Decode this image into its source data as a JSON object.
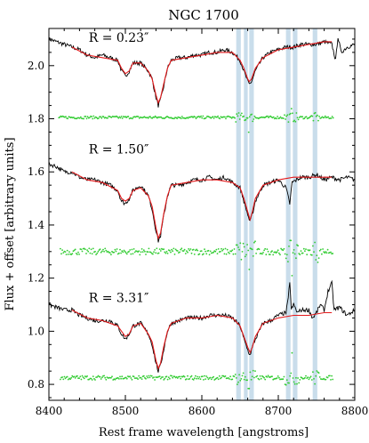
{
  "chart_data": {
    "type": "line",
    "title": "NGC 1700",
    "xlabel": "Rest frame wavelength [angstroms]",
    "ylabel": "Flux + offset [arbitrary units]",
    "xlim": [
      8400,
      8800
    ],
    "ylim": [
      0.74,
      2.14
    ],
    "xticks": [
      8400,
      8500,
      8600,
      8700,
      8800
    ],
    "yticks": [
      0.8,
      1.0,
      1.2,
      1.4,
      1.6,
      1.8,
      2.0
    ],
    "x_tick_labels": [
      "8400",
      "8500",
      "8600",
      "8700",
      "8800"
    ],
    "y_tick_labels": [
      "0.8",
      "1.0",
      "1.2",
      "1.4",
      "1.6",
      "1.8",
      "2.0"
    ],
    "masked_bands": [
      [
        8645,
        8651
      ],
      [
        8655,
        8660
      ],
      [
        8662,
        8668
      ],
      [
        8710,
        8716
      ],
      [
        8719,
        8725
      ],
      [
        8745,
        8751
      ]
    ],
    "colors": {
      "observed": "#000000",
      "model": "#e41a1c",
      "residuals": "#33cc33",
      "masked_band": "#bcd4e6"
    },
    "panels": [
      {
        "label": "R = 0.23″",
        "label_x": 8452,
        "label_y": 2.09,
        "observed": [
          [
            8400,
            2.1
          ],
          [
            8410,
            2.09
          ],
          [
            8420,
            2.08
          ],
          [
            8430,
            2.07
          ],
          [
            8440,
            2.06
          ],
          [
            8450,
            2.04
          ],
          [
            8460,
            2.03
          ],
          [
            8470,
            2.04
          ],
          [
            8480,
            2.03
          ],
          [
            8490,
            2.02
          ],
          [
            8495,
            1.98
          ],
          [
            8500,
            1.96
          ],
          [
            8505,
            1.98
          ],
          [
            8510,
            2.01
          ],
          [
            8520,
            2.01
          ],
          [
            8530,
            1.98
          ],
          [
            8535,
            1.95
          ],
          [
            8540,
            1.88
          ],
          [
            8543,
            1.85
          ],
          [
            8546,
            1.87
          ],
          [
            8550,
            1.92
          ],
          [
            8555,
            1.99
          ],
          [
            8560,
            2.02
          ],
          [
            8570,
            2.03
          ],
          [
            8580,
            2.03
          ],
          [
            8590,
            2.04
          ],
          [
            8600,
            2.04
          ],
          [
            8610,
            2.05
          ],
          [
            8620,
            2.05
          ],
          [
            8630,
            2.06
          ],
          [
            8640,
            2.05
          ],
          [
            8650,
            2.02
          ],
          [
            8655,
            1.98
          ],
          [
            8660,
            1.94
          ],
          [
            8662,
            1.93
          ],
          [
            8665,
            1.94
          ],
          [
            8670,
            1.98
          ],
          [
            8680,
            2.03
          ],
          [
            8690,
            2.05
          ],
          [
            8700,
            2.06
          ],
          [
            8710,
            2.07
          ],
          [
            8720,
            2.07
          ],
          [
            8730,
            2.08
          ],
          [
            8740,
            2.08
          ],
          [
            8750,
            2.08
          ],
          [
            8760,
            2.09
          ],
          [
            8770,
            2.08
          ],
          [
            8775,
            2.02
          ],
          [
            8778,
            2.11
          ],
          [
            8782,
            2.05
          ],
          [
            8790,
            2.07
          ],
          [
            8800,
            2.08
          ]
        ],
        "model": [
          [
            8430,
            2.07
          ],
          [
            8450,
            2.04
          ],
          [
            8470,
            2.03
          ],
          [
            8490,
            2.02
          ],
          [
            8495,
            1.99
          ],
          [
            8500,
            1.97
          ],
          [
            8505,
            1.98
          ],
          [
            8510,
            2.01
          ],
          [
            8520,
            2.01
          ],
          [
            8530,
            1.98
          ],
          [
            8535,
            1.95
          ],
          [
            8540,
            1.89
          ],
          [
            8543,
            1.86
          ],
          [
            8546,
            1.88
          ],
          [
            8550,
            1.93
          ],
          [
            8555,
            1.99
          ],
          [
            8560,
            2.02
          ],
          [
            8580,
            2.03
          ],
          [
            8600,
            2.04
          ],
          [
            8620,
            2.05
          ],
          [
            8640,
            2.05
          ],
          [
            8650,
            2.02
          ],
          [
            8655,
            1.99
          ],
          [
            8660,
            1.95
          ],
          [
            8662,
            1.94
          ],
          [
            8665,
            1.95
          ],
          [
            8670,
            1.99
          ],
          [
            8680,
            2.03
          ],
          [
            8700,
            2.06
          ],
          [
            8720,
            2.07
          ],
          [
            8740,
            2.08
          ],
          [
            8760,
            2.09
          ],
          [
            8770,
            2.09
          ]
        ],
        "residual_level": 1.805,
        "residual_range": [
          8413,
          8772
        ],
        "residual_scatter": 0.005
      },
      {
        "label": "R = 1.50″",
        "label_x": 8452,
        "label_y": 1.67,
        "observed": [
          [
            8400,
            1.63
          ],
          [
            8410,
            1.62
          ],
          [
            8420,
            1.6
          ],
          [
            8430,
            1.6
          ],
          [
            8440,
            1.58
          ],
          [
            8450,
            1.57
          ],
          [
            8460,
            1.57
          ],
          [
            8470,
            1.56
          ],
          [
            8480,
            1.55
          ],
          [
            8490,
            1.53
          ],
          [
            8495,
            1.49
          ],
          [
            8500,
            1.48
          ],
          [
            8505,
            1.5
          ],
          [
            8510,
            1.53
          ],
          [
            8520,
            1.55
          ],
          [
            8530,
            1.51
          ],
          [
            8535,
            1.46
          ],
          [
            8540,
            1.38
          ],
          [
            8543,
            1.34
          ],
          [
            8546,
            1.36
          ],
          [
            8550,
            1.43
          ],
          [
            8555,
            1.51
          ],
          [
            8560,
            1.55
          ],
          [
            8570,
            1.55
          ],
          [
            8580,
            1.56
          ],
          [
            8590,
            1.57
          ],
          [
            8600,
            1.57
          ],
          [
            8610,
            1.58
          ],
          [
            8620,
            1.57
          ],
          [
            8630,
            1.58
          ],
          [
            8640,
            1.56
          ],
          [
            8650,
            1.54
          ],
          [
            8655,
            1.49
          ],
          [
            8660,
            1.44
          ],
          [
            8663,
            1.41
          ],
          [
            8666,
            1.44
          ],
          [
            8670,
            1.49
          ],
          [
            8680,
            1.55
          ],
          [
            8690,
            1.56
          ],
          [
            8700,
            1.57
          ],
          [
            8710,
            1.54
          ],
          [
            8715,
            1.48
          ],
          [
            8718,
            1.56
          ],
          [
            8730,
            1.58
          ],
          [
            8740,
            1.58
          ],
          [
            8750,
            1.59
          ],
          [
            8760,
            1.57
          ],
          [
            8770,
            1.58
          ],
          [
            8780,
            1.57
          ],
          [
            8790,
            1.58
          ],
          [
            8800,
            1.57
          ]
        ],
        "model": [
          [
            8430,
            1.6
          ],
          [
            8450,
            1.57
          ],
          [
            8470,
            1.56
          ],
          [
            8490,
            1.53
          ],
          [
            8495,
            1.5
          ],
          [
            8500,
            1.49
          ],
          [
            8505,
            1.5
          ],
          [
            8510,
            1.53
          ],
          [
            8520,
            1.54
          ],
          [
            8530,
            1.51
          ],
          [
            8535,
            1.47
          ],
          [
            8540,
            1.39
          ],
          [
            8543,
            1.35
          ],
          [
            8546,
            1.37
          ],
          [
            8550,
            1.44
          ],
          [
            8555,
            1.51
          ],
          [
            8560,
            1.55
          ],
          [
            8580,
            1.56
          ],
          [
            8600,
            1.57
          ],
          [
            8620,
            1.57
          ],
          [
            8640,
            1.56
          ],
          [
            8650,
            1.54
          ],
          [
            8655,
            1.5
          ],
          [
            8660,
            1.45
          ],
          [
            8663,
            1.42
          ],
          [
            8666,
            1.45
          ],
          [
            8670,
            1.5
          ],
          [
            8680,
            1.55
          ],
          [
            8700,
            1.57
          ],
          [
            8720,
            1.58
          ],
          [
            8740,
            1.58
          ],
          [
            8760,
            1.58
          ],
          [
            8770,
            1.58
          ]
        ],
        "residual_level": 1.3,
        "residual_range": [
          8415,
          8772
        ],
        "residual_scatter": 0.012
      },
      {
        "label": "R = 3.31″",
        "label_x": 8452,
        "label_y": 1.11,
        "observed": [
          [
            8400,
            1.1
          ],
          [
            8410,
            1.09
          ],
          [
            8420,
            1.08
          ],
          [
            8430,
            1.08
          ],
          [
            8440,
            1.06
          ],
          [
            8450,
            1.05
          ],
          [
            8460,
            1.04
          ],
          [
            8470,
            1.04
          ],
          [
            8480,
            1.04
          ],
          [
            8490,
            1.02
          ],
          [
            8495,
            0.99
          ],
          [
            8500,
            0.97
          ],
          [
            8505,
            0.99
          ],
          [
            8510,
            1.02
          ],
          [
            8520,
            1.03
          ],
          [
            8530,
            0.99
          ],
          [
            8535,
            0.95
          ],
          [
            8540,
            0.88
          ],
          [
            8543,
            0.85
          ],
          [
            8546,
            0.87
          ],
          [
            8550,
            0.93
          ],
          [
            8555,
            1.0
          ],
          [
            8560,
            1.03
          ],
          [
            8570,
            1.04
          ],
          [
            8580,
            1.05
          ],
          [
            8590,
            1.05
          ],
          [
            8600,
            1.05
          ],
          [
            8610,
            1.06
          ],
          [
            8620,
            1.06
          ],
          [
            8630,
            1.06
          ],
          [
            8640,
            1.05
          ],
          [
            8650,
            1.02
          ],
          [
            8655,
            0.97
          ],
          [
            8660,
            0.93
          ],
          [
            8663,
            0.91
          ],
          [
            8666,
            0.94
          ],
          [
            8670,
            0.97
          ],
          [
            8680,
            1.03
          ],
          [
            8690,
            1.04
          ],
          [
            8700,
            1.06
          ],
          [
            8710,
            1.07
          ],
          [
            8713,
            1.12
          ],
          [
            8715,
            1.19
          ],
          [
            8717,
            1.08
          ],
          [
            8720,
            1.1
          ],
          [
            8725,
            1.07
          ],
          [
            8730,
            1.08
          ],
          [
            8740,
            1.08
          ],
          [
            8745,
            1.05
          ],
          [
            8750,
            1.07
          ],
          [
            8755,
            1.1
          ],
          [
            8760,
            1.08
          ],
          [
            8765,
            1.15
          ],
          [
            8770,
            1.18
          ],
          [
            8773,
            1.08
          ],
          [
            8780,
            1.09
          ],
          [
            8790,
            1.06
          ],
          [
            8800,
            1.08
          ]
        ],
        "model": [
          [
            8430,
            1.08
          ],
          [
            8450,
            1.05
          ],
          [
            8470,
            1.04
          ],
          [
            8490,
            1.02
          ],
          [
            8495,
            1.0
          ],
          [
            8500,
            0.98
          ],
          [
            8505,
            0.99
          ],
          [
            8510,
            1.02
          ],
          [
            8520,
            1.03
          ],
          [
            8530,
            0.99
          ],
          [
            8535,
            0.96
          ],
          [
            8540,
            0.89
          ],
          [
            8543,
            0.86
          ],
          [
            8546,
            0.88
          ],
          [
            8550,
            0.94
          ],
          [
            8555,
            1.0
          ],
          [
            8560,
            1.03
          ],
          [
            8580,
            1.05
          ],
          [
            8600,
            1.05
          ],
          [
            8620,
            1.06
          ],
          [
            8640,
            1.05
          ],
          [
            8650,
            1.02
          ],
          [
            8655,
            0.98
          ],
          [
            8660,
            0.94
          ],
          [
            8663,
            0.92
          ],
          [
            8666,
            0.94
          ],
          [
            8670,
            0.98
          ],
          [
            8680,
            1.03
          ],
          [
            8700,
            1.05
          ],
          [
            8720,
            1.06
          ],
          [
            8740,
            1.06
          ],
          [
            8760,
            1.07
          ],
          [
            8770,
            1.07
          ]
        ],
        "residual_level": 0.825,
        "residual_range": [
          8415,
          8772
        ],
        "residual_scatter": 0.008
      }
    ]
  }
}
